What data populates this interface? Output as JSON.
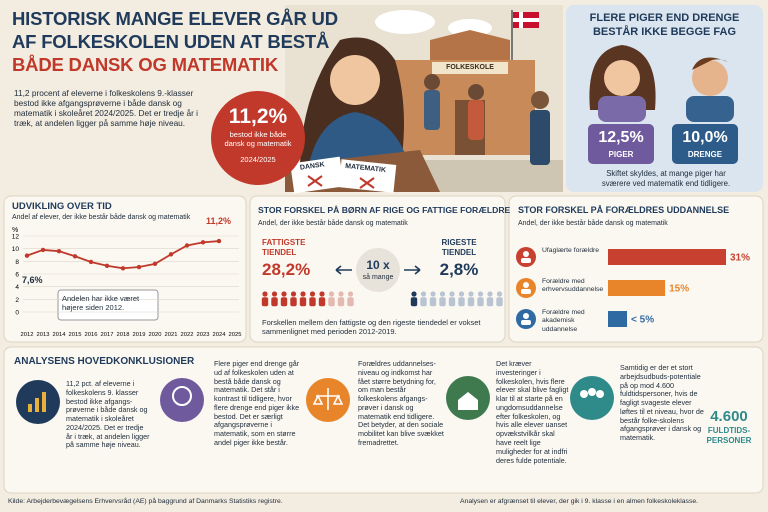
{
  "header": {
    "title_lines": [
      "HISTORISK MANGE ELEVER GÅR UD",
      "AF FOLKESKOLEN UDEN AT BESTÅ",
      "BÅDE DANSK OG MATEMATIK"
    ],
    "intro": "11,2 procent af eleverne i folkeskolens 9.-klasser bestod ikke afgangsprøverne i både dansk og matematik i skoleåret 2024/2025. Det er tredje år i træk, at andelen ligger på samme høje niveau.",
    "highlight": {
      "value": "11,2%",
      "text": "bestod ikke både dansk og matematik",
      "period": "2024/2025"
    },
    "illustration_labels": {
      "school": "FOLKESKOLE",
      "paper1": "DANSK",
      "paper2": "MATEMATIK"
    }
  },
  "gender": {
    "title_lines": [
      "FLERE PIGER END DRENGE",
      "BESTÅR IKKE BEGGE FAG"
    ],
    "girls": {
      "value": "12,5%",
      "label": "PIGER"
    },
    "boys": {
      "value": "10,0%",
      "label": "DRENGE"
    },
    "note": "Skiftet skyldes, at mange piger har sværere ved matematik end tidligere."
  },
  "chart_data": [
    {
      "type": "line",
      "title": "UDVIKLING OVER TID",
      "subtitle": "Andel af elever, der ikke består både dansk og matematik",
      "y_label": "%",
      "categories": [
        "2012",
        "2013",
        "2014",
        "2015",
        "2016",
        "2017",
        "2018",
        "2019",
        "2020",
        "2021",
        "2022",
        "2023",
        "2024",
        "2025"
      ],
      "values": [
        8.9,
        9.8,
        9.6,
        8.8,
        7.9,
        7.3,
        6.9,
        7.1,
        7.6,
        9.1,
        10.5,
        11.0,
        11.2,
        null
      ],
      "color": "#c0392b",
      "ylim": [
        0,
        12
      ],
      "yticks": [
        0,
        2,
        4,
        6,
        8,
        10,
        12
      ],
      "grid": true,
      "annotations": [
        "7,6%",
        "11,2%",
        "Andelen har ikke været højere siden 2012."
      ]
    },
    {
      "type": "hbar",
      "title": "STOR FORSKEL PÅ FORÆLDRES UDDANNELSE",
      "subtitle": "Andel, der ikke består både dansk og matematik",
      "categories": [
        "Ufaglærte forældre",
        "Forældre med erhvervsuddannelse",
        "Forældre med akademisk uddannelse"
      ],
      "values": [
        31,
        15,
        5
      ],
      "value_labels": [
        "31%",
        "15%",
        "< 5%"
      ],
      "colors": [
        "#c8402f",
        "#e8842a",
        "#2f6aa3"
      ],
      "xlim": [
        0,
        31
      ]
    }
  ],
  "income": {
    "title": "STOR FORSKEL PÅ BØRN AF RIGE OG FATTIGE FORÆLDRE",
    "subtitle": "Andel, der ikke består både dansk og matematik",
    "poor": {
      "label_lines": [
        "FATTIGSTE",
        "TIENDEL"
      ],
      "value": "28,2%"
    },
    "ratio": {
      "value": "10 x",
      "label": "så mange"
    },
    "rich": {
      "label_lines": [
        "RIGESTE",
        "TIENDEL"
      ],
      "value": "2,8%"
    },
    "note": "Forskellen mellem den fattigste og den rigeste tiendedel er vokset sammenlignet med perioden 2012-2019."
  },
  "conclusions": {
    "title": "ANALYSENS HOVEDKONKLUSIONER",
    "items": [
      "11,2 pct. af eleverne i folkeskolens 9. klasser bestod ikke afgangs-prøverne i både dansk og matematik i skoleåret 2024/2025. Det er tredje år i træk, at andelen ligger på samme høje niveau.",
      "Flere piger end drenge går ud af folkeskolen uden at bestå både dansk og matematik. Det står i kontrast til tidligere, hvor flere drenge end piger ikke bestod. Det er særligt afgangsprøverne i matematik, som en større andel piger ikke består.",
      "Forældres uddannelses-niveau og indkomst har fået større betydning for, om man består folkeskolens afgangs-prøver i dansk og matematik end tidligere. Det betyder, at den sociale mobilitet kan blive svækket fremadrettet.",
      "Det kræver investeringer i folkeskolen, hvis flere elever skal blive fagligt klar til at starte på en ungdomsuddannelse efter folkeskolen, og hvis alle elever uanset opvækstvilkår skal have reelt lige muligheder for at indfri deres fulde potentiale.",
      "Samtidig er der et stort arbejdsudbuds-potentiale på op mod 4.600 fuldtidspersoner, hvis de fagligt svageste elever løftes til et niveau, hvor de består folke-skolens afgangsprøver i dansk og matematik."
    ],
    "stat": {
      "value": "4.600",
      "label_lines": [
        "FULDTIDS-",
        "PERSONER"
      ]
    }
  },
  "footer": {
    "source": "Kilde: Arbejderbevægelsens Erhvervsråd (AE) på baggrund af Danmarks Statistiks registre.",
    "note": "Analysen er afgrænset til elever, der gik i 9. klasse i en almen folkeskoleklasse."
  }
}
